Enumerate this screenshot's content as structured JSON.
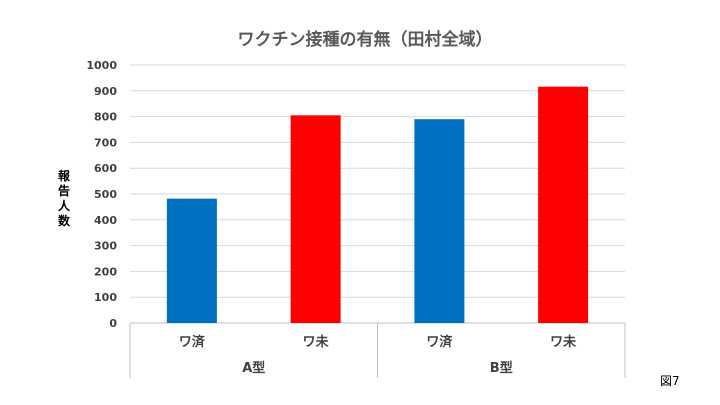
{
  "chart_data": {
    "type": "bar",
    "title": "ワクチン接種の有無（田村全域）",
    "ylabel": "報告人数",
    "xlabel": "",
    "ylim": [
      0,
      1000
    ],
    "yticks": [
      0,
      100,
      200,
      300,
      400,
      500,
      600,
      700,
      800,
      900,
      1000
    ],
    "grid": true,
    "legend": "none",
    "groups": [
      {
        "label": "A型",
        "categories": [
          "ワ済",
          "ワ未"
        ]
      },
      {
        "label": "B型",
        "categories": [
          "ワ済",
          "ワ未"
        ]
      }
    ],
    "categories": [
      "ワ済",
      "ワ未",
      "ワ済",
      "ワ未"
    ],
    "values": [
      482,
      805,
      790,
      916
    ],
    "colors": [
      "#0070c0",
      "#ff0000",
      "#0070c0",
      "#ff0000"
    ]
  },
  "figure_label": "図7"
}
